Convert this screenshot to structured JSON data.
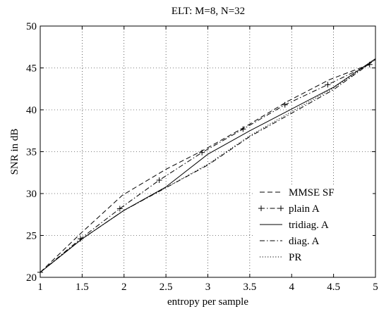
{
  "chart_data": {
    "type": "line",
    "title": "ELT: M=8, N=32",
    "xlabel": "entropy per sample",
    "ylabel": "SNR in dB",
    "xlim": [
      1,
      5
    ],
    "ylim": [
      20,
      50
    ],
    "xticks": [
      1,
      1.5,
      2,
      2.5,
      3,
      3.5,
      4,
      4.5,
      5
    ],
    "yticks": [
      20,
      25,
      30,
      35,
      40,
      45,
      50
    ],
    "xtick_labels": [
      "1",
      "1.5",
      "2",
      "2.5",
      "3",
      "3.5",
      "4",
      "4.5",
      "5"
    ],
    "ytick_labels": [
      "20",
      "25",
      "30",
      "35",
      "40",
      "45",
      "50"
    ],
    "grid": true,
    "legend_position": "bottom-right",
    "series": [
      {
        "name": "MMSE SF",
        "style": "dashed",
        "x": [
          1.0,
          1.5,
          1.98,
          2.5,
          2.95,
          3.45,
          3.95,
          4.45,
          4.95
        ],
        "y": [
          20.6,
          25.4,
          29.8,
          32.9,
          35.2,
          38.0,
          41.0,
          43.6,
          45.5
        ]
      },
      {
        "name": "plain A",
        "style": "dashdot-plus",
        "x": [
          1.0,
          1.48,
          1.95,
          2.42,
          2.93,
          3.42,
          3.92,
          4.43,
          4.93
        ],
        "y": [
          20.6,
          24.6,
          28.2,
          31.6,
          34.9,
          37.7,
          40.6,
          43.0,
          45.4
        ]
      },
      {
        "name": "tridiag. A",
        "style": "solid",
        "x": [
          1.0,
          1.5,
          2.0,
          2.5,
          3.0,
          3.5,
          4.0,
          4.5,
          5.0
        ],
        "y": [
          20.6,
          24.6,
          28.0,
          30.8,
          34.7,
          37.5,
          40.1,
          42.7,
          46.1
        ]
      },
      {
        "name": "diag. A",
        "style": "dashdot",
        "x": [
          1.0,
          1.5,
          2.0,
          2.5,
          3.0,
          3.5,
          4.0,
          4.5,
          5.0
        ],
        "y": [
          20.6,
          24.6,
          28.0,
          30.7,
          33.4,
          36.8,
          39.6,
          42.4,
          46.0
        ]
      },
      {
        "name": "PR",
        "style": "dotted",
        "x": [
          1.0,
          1.5,
          2.0,
          2.5,
          3.0,
          3.5,
          4.0,
          4.5,
          5.0
        ],
        "y": [
          20.6,
          24.6,
          28.0,
          30.7,
          33.5,
          36.9,
          39.8,
          42.6,
          46.0
        ]
      }
    ]
  }
}
